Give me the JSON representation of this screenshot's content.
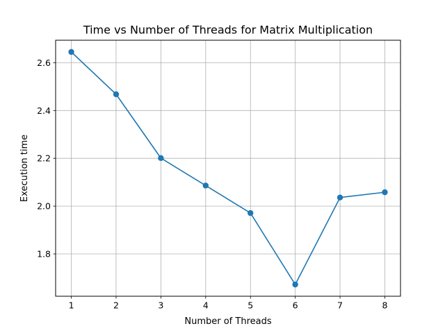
{
  "chart_data": {
    "type": "line",
    "title": "Time vs Number of Threads for Matrix Multiplication",
    "xlabel": "Number of Threads",
    "ylabel": "Execution time",
    "x": [
      1,
      2,
      3,
      4,
      5,
      6,
      7,
      8
    ],
    "series": [
      {
        "values": [
          2.645,
          2.468,
          2.201,
          2.086,
          1.971,
          1.672,
          2.036,
          2.058
        ],
        "color": "#1f77b4",
        "marker": "circle"
      }
    ],
    "xticks": [
      "1",
      "2",
      "3",
      "4",
      "5",
      "6",
      "7",
      "8"
    ],
    "yticks": [
      "1.8",
      "2.0",
      "2.2",
      "2.4",
      "2.6"
    ],
    "xlim": [
      0.65,
      8.35
    ],
    "ylim": [
      1.623,
      2.694
    ],
    "grid": true
  }
}
